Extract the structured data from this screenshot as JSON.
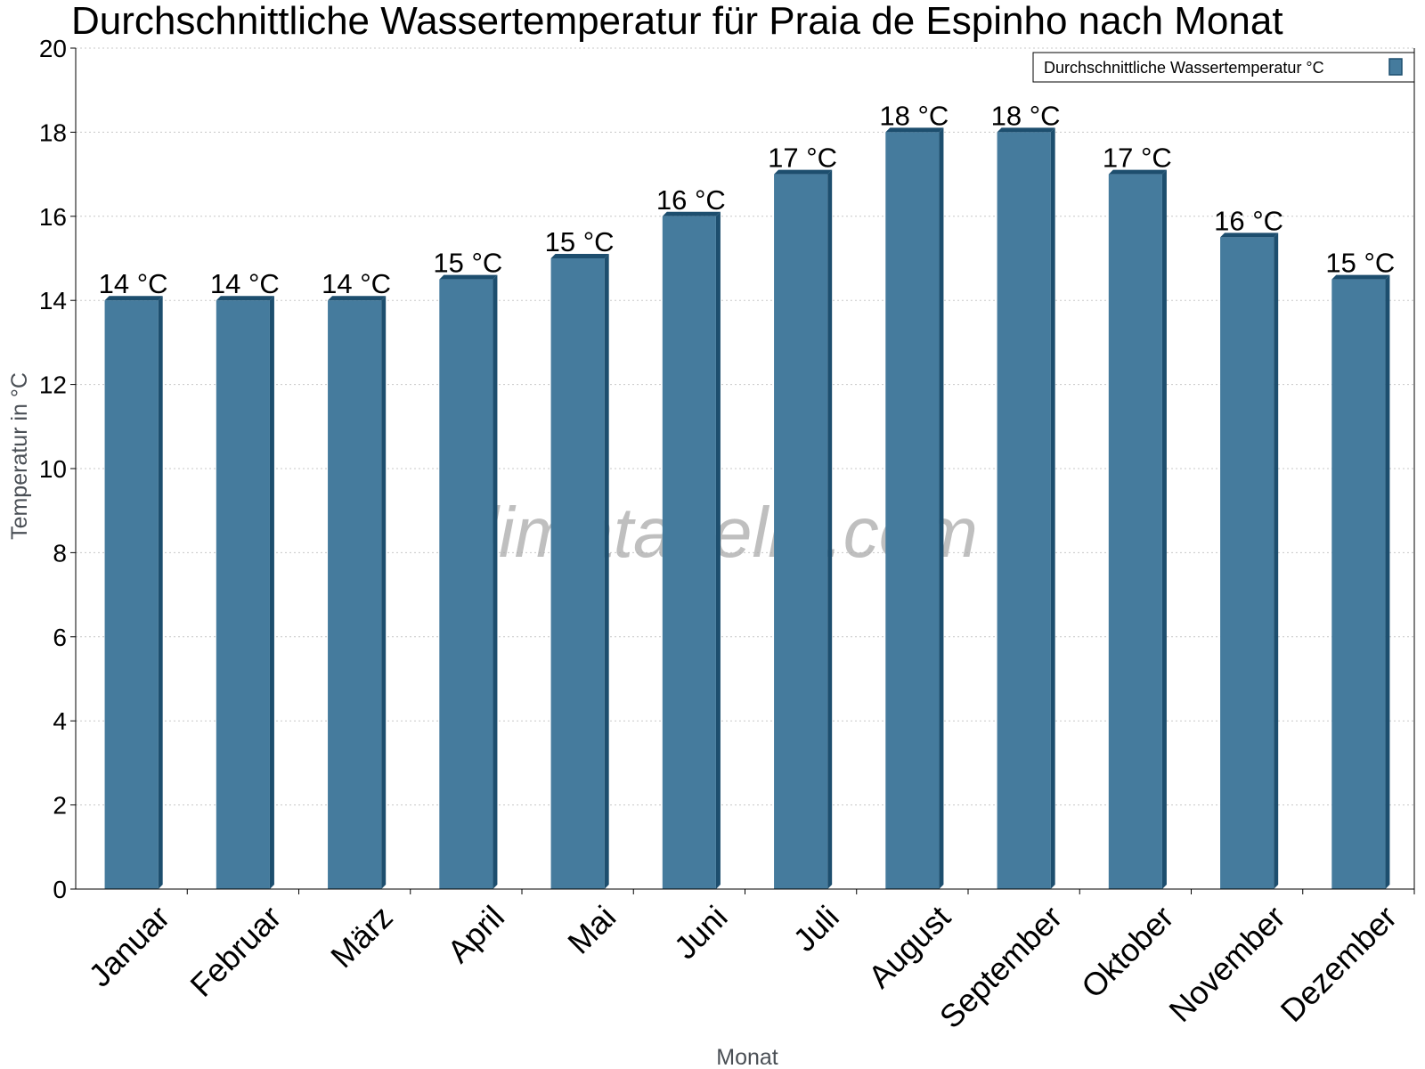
{
  "chart_data": {
    "type": "bar",
    "title": "Durchschnittliche Wassertemperatur für Praia de Espinho nach Monat",
    "xlabel": "Monat",
    "ylabel": "Temperatur in °C",
    "ylim": [
      0,
      20
    ],
    "yticks": [
      0,
      2,
      4,
      6,
      8,
      10,
      12,
      14,
      16,
      18,
      20
    ],
    "grid": true,
    "legend_position": "top-right",
    "categories": [
      "Januar",
      "Februar",
      "März",
      "April",
      "Mai",
      "Juni",
      "Juli",
      "August",
      "September",
      "Oktober",
      "November",
      "Dezember"
    ],
    "series": [
      {
        "name": "Durchschnittliche Wassertemperatur °C",
        "color": "#457b9d",
        "side_color": "#1d4e6e",
        "values": [
          14,
          14,
          14,
          14.5,
          15,
          16,
          17,
          18,
          18,
          17,
          15.5,
          14.5
        ],
        "data_labels": [
          "14 °C",
          "14 °C",
          "14 °C",
          "15 °C",
          "15 °C",
          "16 °C",
          "17 °C",
          "18 °C",
          "18 °C",
          "17 °C",
          "16 °C",
          "15 °C"
        ]
      }
    ]
  },
  "watermark": "klimatabelle.com"
}
